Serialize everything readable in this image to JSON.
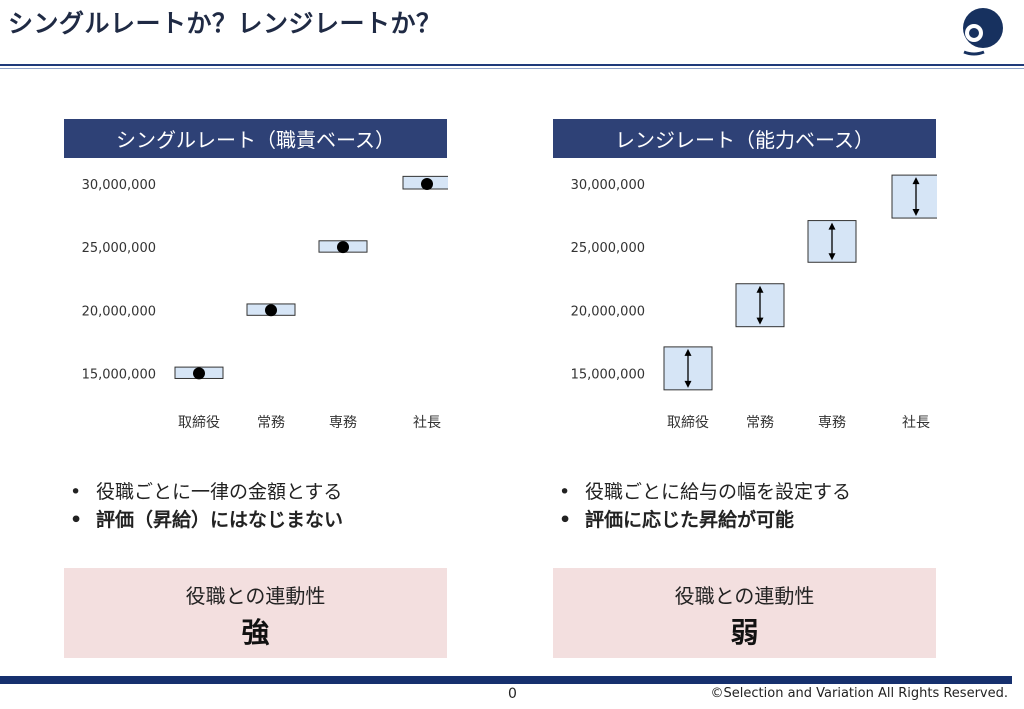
{
  "title": "シングルレートか？レンジレートか？",
  "logo_icon": "blue-circle-logo-icon",
  "left": {
    "header": "シングルレート（職責ベース）",
    "bullets": [
      {
        "text": "役職ごとに一律の金額とする",
        "bold": false
      },
      {
        "text": "評価（昇給）にはなじまない",
        "bold": true
      }
    ],
    "box_label": "役職との連動性",
    "box_value": "強"
  },
  "right": {
    "header": "レンジレート（能力ベース）",
    "bullets": [
      {
        "text": "役職ごとに給与の幅を設定する",
        "bold": false
      },
      {
        "text": "評価に応じた昇給が可能",
        "bold": true
      }
    ],
    "box_label": "役職との連動性",
    "box_value": "弱"
  },
  "footer": {
    "page_number": "0",
    "copyright": "©Selection and Variation All Rights Reserved."
  },
  "chart_data": [
    {
      "type": "scatter",
      "title": "シングルレート（職責ベース）",
      "categories": [
        "取締役",
        "常務",
        "専務",
        "社長"
      ],
      "y_ticks": [
        "15,000,000",
        "20,000,000",
        "25,000,000",
        "30,000,000"
      ],
      "y_tick_values": [
        15000000,
        20000000,
        25000000,
        30000000
      ],
      "ylim": [
        12500000,
        31500000
      ],
      "values": [
        15000000,
        20000000,
        25000000,
        30000000
      ],
      "range_low": [
        14600000,
        19600000,
        24600000,
        29600000
      ],
      "range_high": [
        15500000,
        20500000,
        25500000,
        30600000
      ],
      "marker": "dot",
      "box_fill": "#d6e5f6",
      "box_stroke": "#333333"
    },
    {
      "type": "bar",
      "title": "レンジレート（能力ベース）",
      "categories": [
        "取締役",
        "常務",
        "専務",
        "社長"
      ],
      "y_ticks": [
        "15,000,000",
        "20,000,000",
        "25,000,000",
        "30,000,000"
      ],
      "y_tick_values": [
        15000000,
        20000000,
        25000000,
        30000000
      ],
      "ylim": [
        12500000,
        31500000
      ],
      "range_low": [
        13700000,
        18700000,
        23800000,
        27300000
      ],
      "range_high": [
        17100000,
        22100000,
        27100000,
        30700000
      ],
      "marker": "double-arrow",
      "box_fill": "#d6e5f6",
      "box_stroke": "#333333"
    }
  ]
}
